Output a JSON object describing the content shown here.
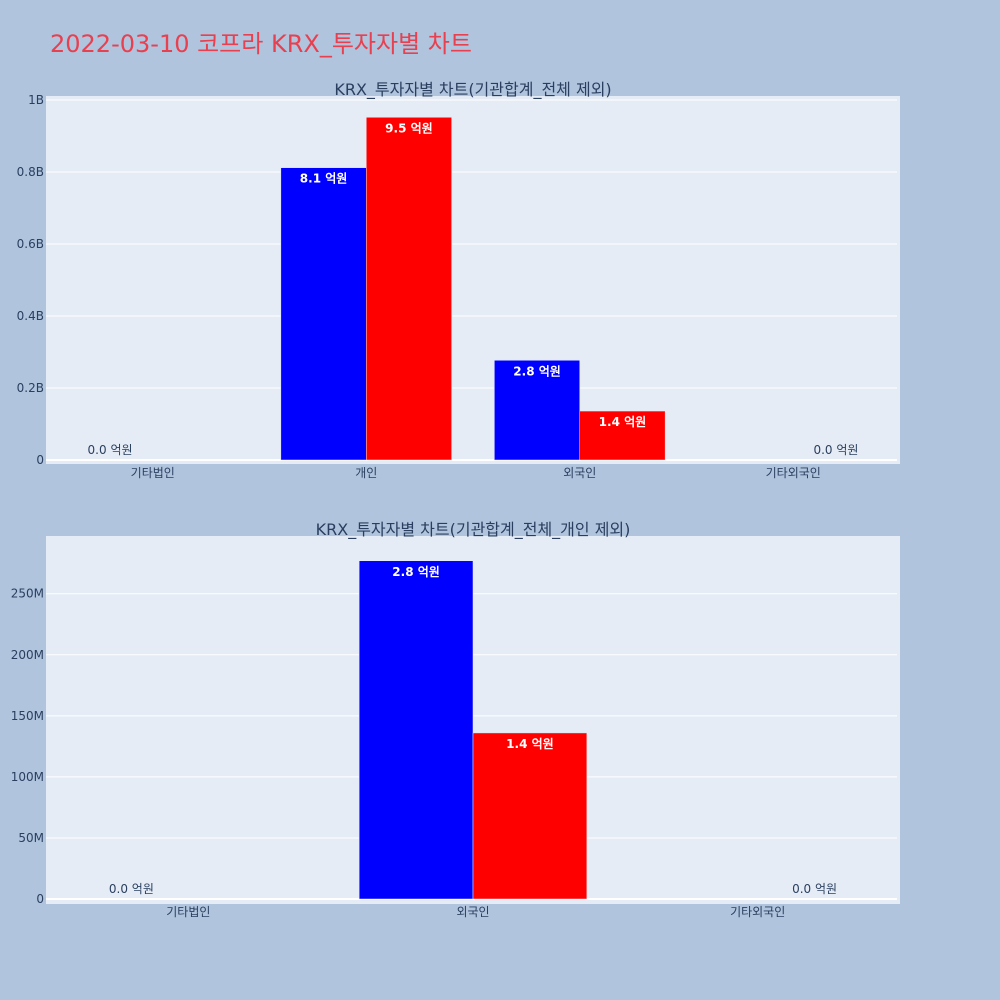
{
  "page": {
    "title": "2022-03-10 코프라 KRX_투자자별 차트",
    "colors": {
      "background": "#b0c4de",
      "plot": "#e5ecf6",
      "title": "#e8404f",
      "blue": "#0000ff",
      "red": "#ff0000"
    }
  },
  "chart_data": [
    {
      "type": "bar",
      "title": "KRX_투자자별 차트(기관합계_전체 제외)",
      "categories": [
        "기타법인",
        "개인",
        "외국인",
        "기타외국인"
      ],
      "series": [
        {
          "color": "#0000ff",
          "values": [
            0,
            812000000,
            277000000,
            0
          ],
          "labels": [
            "0.0 억원",
            "8.1 억원",
            "2.8 억원",
            ""
          ]
        },
        {
          "color": "#ff0000",
          "values": [
            0,
            952000000,
            136000000,
            0
          ],
          "labels": [
            "",
            "9.5 억원",
            "1.4 억원",
            "0.0 억원"
          ]
        }
      ],
      "ylim": [
        0,
        1000000000
      ],
      "yticks": [
        {
          "value": 0,
          "label": "0"
        },
        {
          "value": 200000000,
          "label": "0.2B"
        },
        {
          "value": 400000000,
          "label": "0.4B"
        },
        {
          "value": 600000000,
          "label": "0.6B"
        },
        {
          "value": 800000000,
          "label": "0.8B"
        },
        {
          "value": 1000000000,
          "label": "1B"
        }
      ],
      "grid": true
    },
    {
      "type": "bar",
      "title": "KRX_투자자별 차트(기관합계_전체_개인 제외)",
      "categories": [
        "기타법인",
        "외국인",
        "기타외국인"
      ],
      "series": [
        {
          "color": "#0000ff",
          "values": [
            0,
            277000000,
            0
          ],
          "labels": [
            "0.0 억원",
            "2.8 억원",
            ""
          ]
        },
        {
          "color": "#ff0000",
          "values": [
            0,
            136000000,
            0
          ],
          "labels": [
            "",
            "1.4 억원",
            "0.0 억원"
          ]
        }
      ],
      "ylim": [
        0,
        294000000
      ],
      "yticks": [
        {
          "value": 0,
          "label": "0"
        },
        {
          "value": 50000000,
          "label": "50M"
        },
        {
          "value": 100000000,
          "label": "100M"
        },
        {
          "value": 150000000,
          "label": "150M"
        },
        {
          "value": 200000000,
          "label": "200M"
        },
        {
          "value": 250000000,
          "label": "250M"
        }
      ],
      "grid": true
    }
  ]
}
